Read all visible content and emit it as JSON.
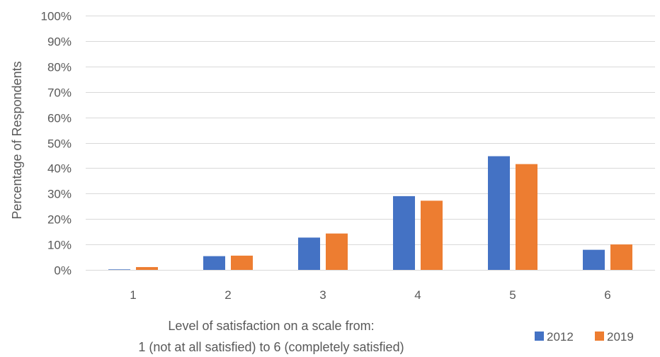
{
  "chart_data": {
    "type": "bar",
    "categories": [
      "1",
      "2",
      "3",
      "4",
      "5",
      "6"
    ],
    "series": [
      {
        "name": "2012",
        "values": [
          0.2,
          5.4,
          12.7,
          29.0,
          44.7,
          7.9
        ],
        "color": "#4472C4"
      },
      {
        "name": "2019",
        "values": [
          1.1,
          5.6,
          14.3,
          27.2,
          41.6,
          10.0
        ],
        "color": "#ED7D31"
      }
    ],
    "ylabel": "Percentage of Respondents",
    "xlabel_line1": "Level of satisfaction on a scale from:",
    "xlabel_line2": "1 (not at all satisfied) to 6 (completely satisfied)",
    "ylim": [
      0,
      100
    ],
    "yticks": [
      0,
      10,
      20,
      30,
      40,
      50,
      60,
      70,
      80,
      90,
      100
    ],
    "ytick_labels": [
      "0%",
      "10%",
      "20%",
      "30%",
      "40%",
      "50%",
      "60%",
      "70%",
      "80%",
      "90%",
      "100%"
    ],
    "grid": true,
    "legend_position": "bottom-right",
    "gridline_color": "#D9D9D9"
  }
}
